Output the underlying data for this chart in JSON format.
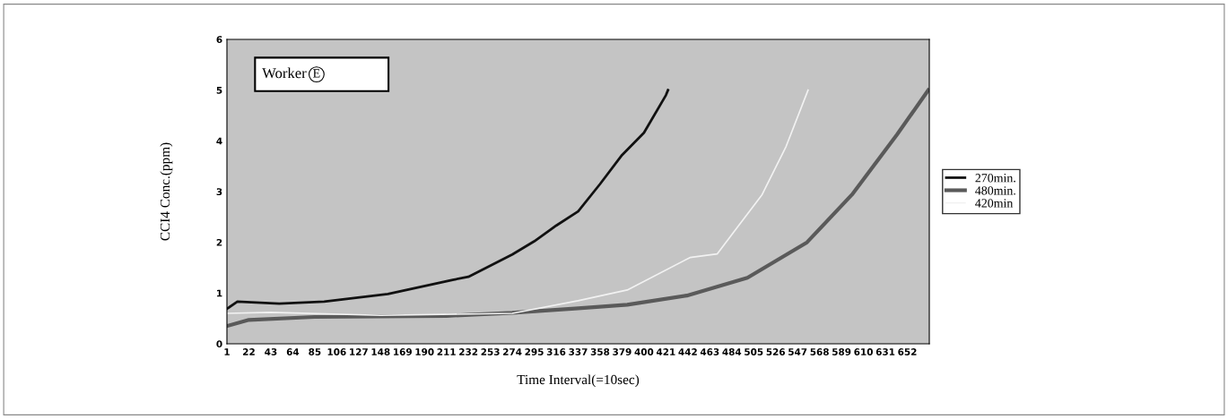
{
  "chart_data": {
    "type": "line",
    "xlabel": "Time Interval(=10sec)",
    "ylabel": "CCI4 Conc.(ppm)",
    "annotations": [
      "Worker E"
    ],
    "xlim": [
      1,
      673
    ],
    "xticks": [
      1,
      22,
      43,
      64,
      85,
      106,
      127,
      148,
      169,
      190,
      211,
      232,
      253,
      274,
      295,
      316,
      337,
      358,
      379,
      400,
      421,
      442,
      463,
      484,
      505,
      526,
      547,
      568,
      589,
      610,
      631,
      652
    ],
    "ylim": [
      0,
      6
    ],
    "yticks": [
      0,
      1,
      2,
      3,
      4,
      5,
      6
    ],
    "grid": false,
    "legend": "right",
    "series": [
      {
        "name": "270min.",
        "color": "#111111",
        "x": [
          1,
          11,
          51,
          94,
          155,
          217,
          232,
          274,
          295,
          316,
          337,
          358,
          379,
          400,
          421,
          423
        ],
        "values": [
          0.69,
          0.83,
          0.79,
          0.83,
          0.98,
          1.26,
          1.32,
          1.76,
          2.02,
          2.33,
          2.61,
          3.15,
          3.72,
          4.16,
          4.9,
          5.0
        ]
      },
      {
        "name": "480min.",
        "color": "#5a5a5a",
        "x": [
          1,
          22,
          85,
          211,
          274,
          337,
          384,
          441,
          499,
          556,
          599,
          642,
          672
        ],
        "values": [
          0.35,
          0.47,
          0.53,
          0.55,
          0.61,
          0.7,
          0.77,
          0.95,
          1.3,
          2.0,
          2.94,
          4.12,
          5.0
        ]
      },
      {
        "name": "420min",
        "color": "#f2f2f2",
        "x": [
          1,
          43,
          148,
          274,
          337,
          384,
          444,
          470,
          513,
          536,
          557
        ],
        "values": [
          0.6,
          0.62,
          0.56,
          0.6,
          0.85,
          1.06,
          1.7,
          1.77,
          2.94,
          3.89,
          5.0
        ]
      }
    ]
  }
}
